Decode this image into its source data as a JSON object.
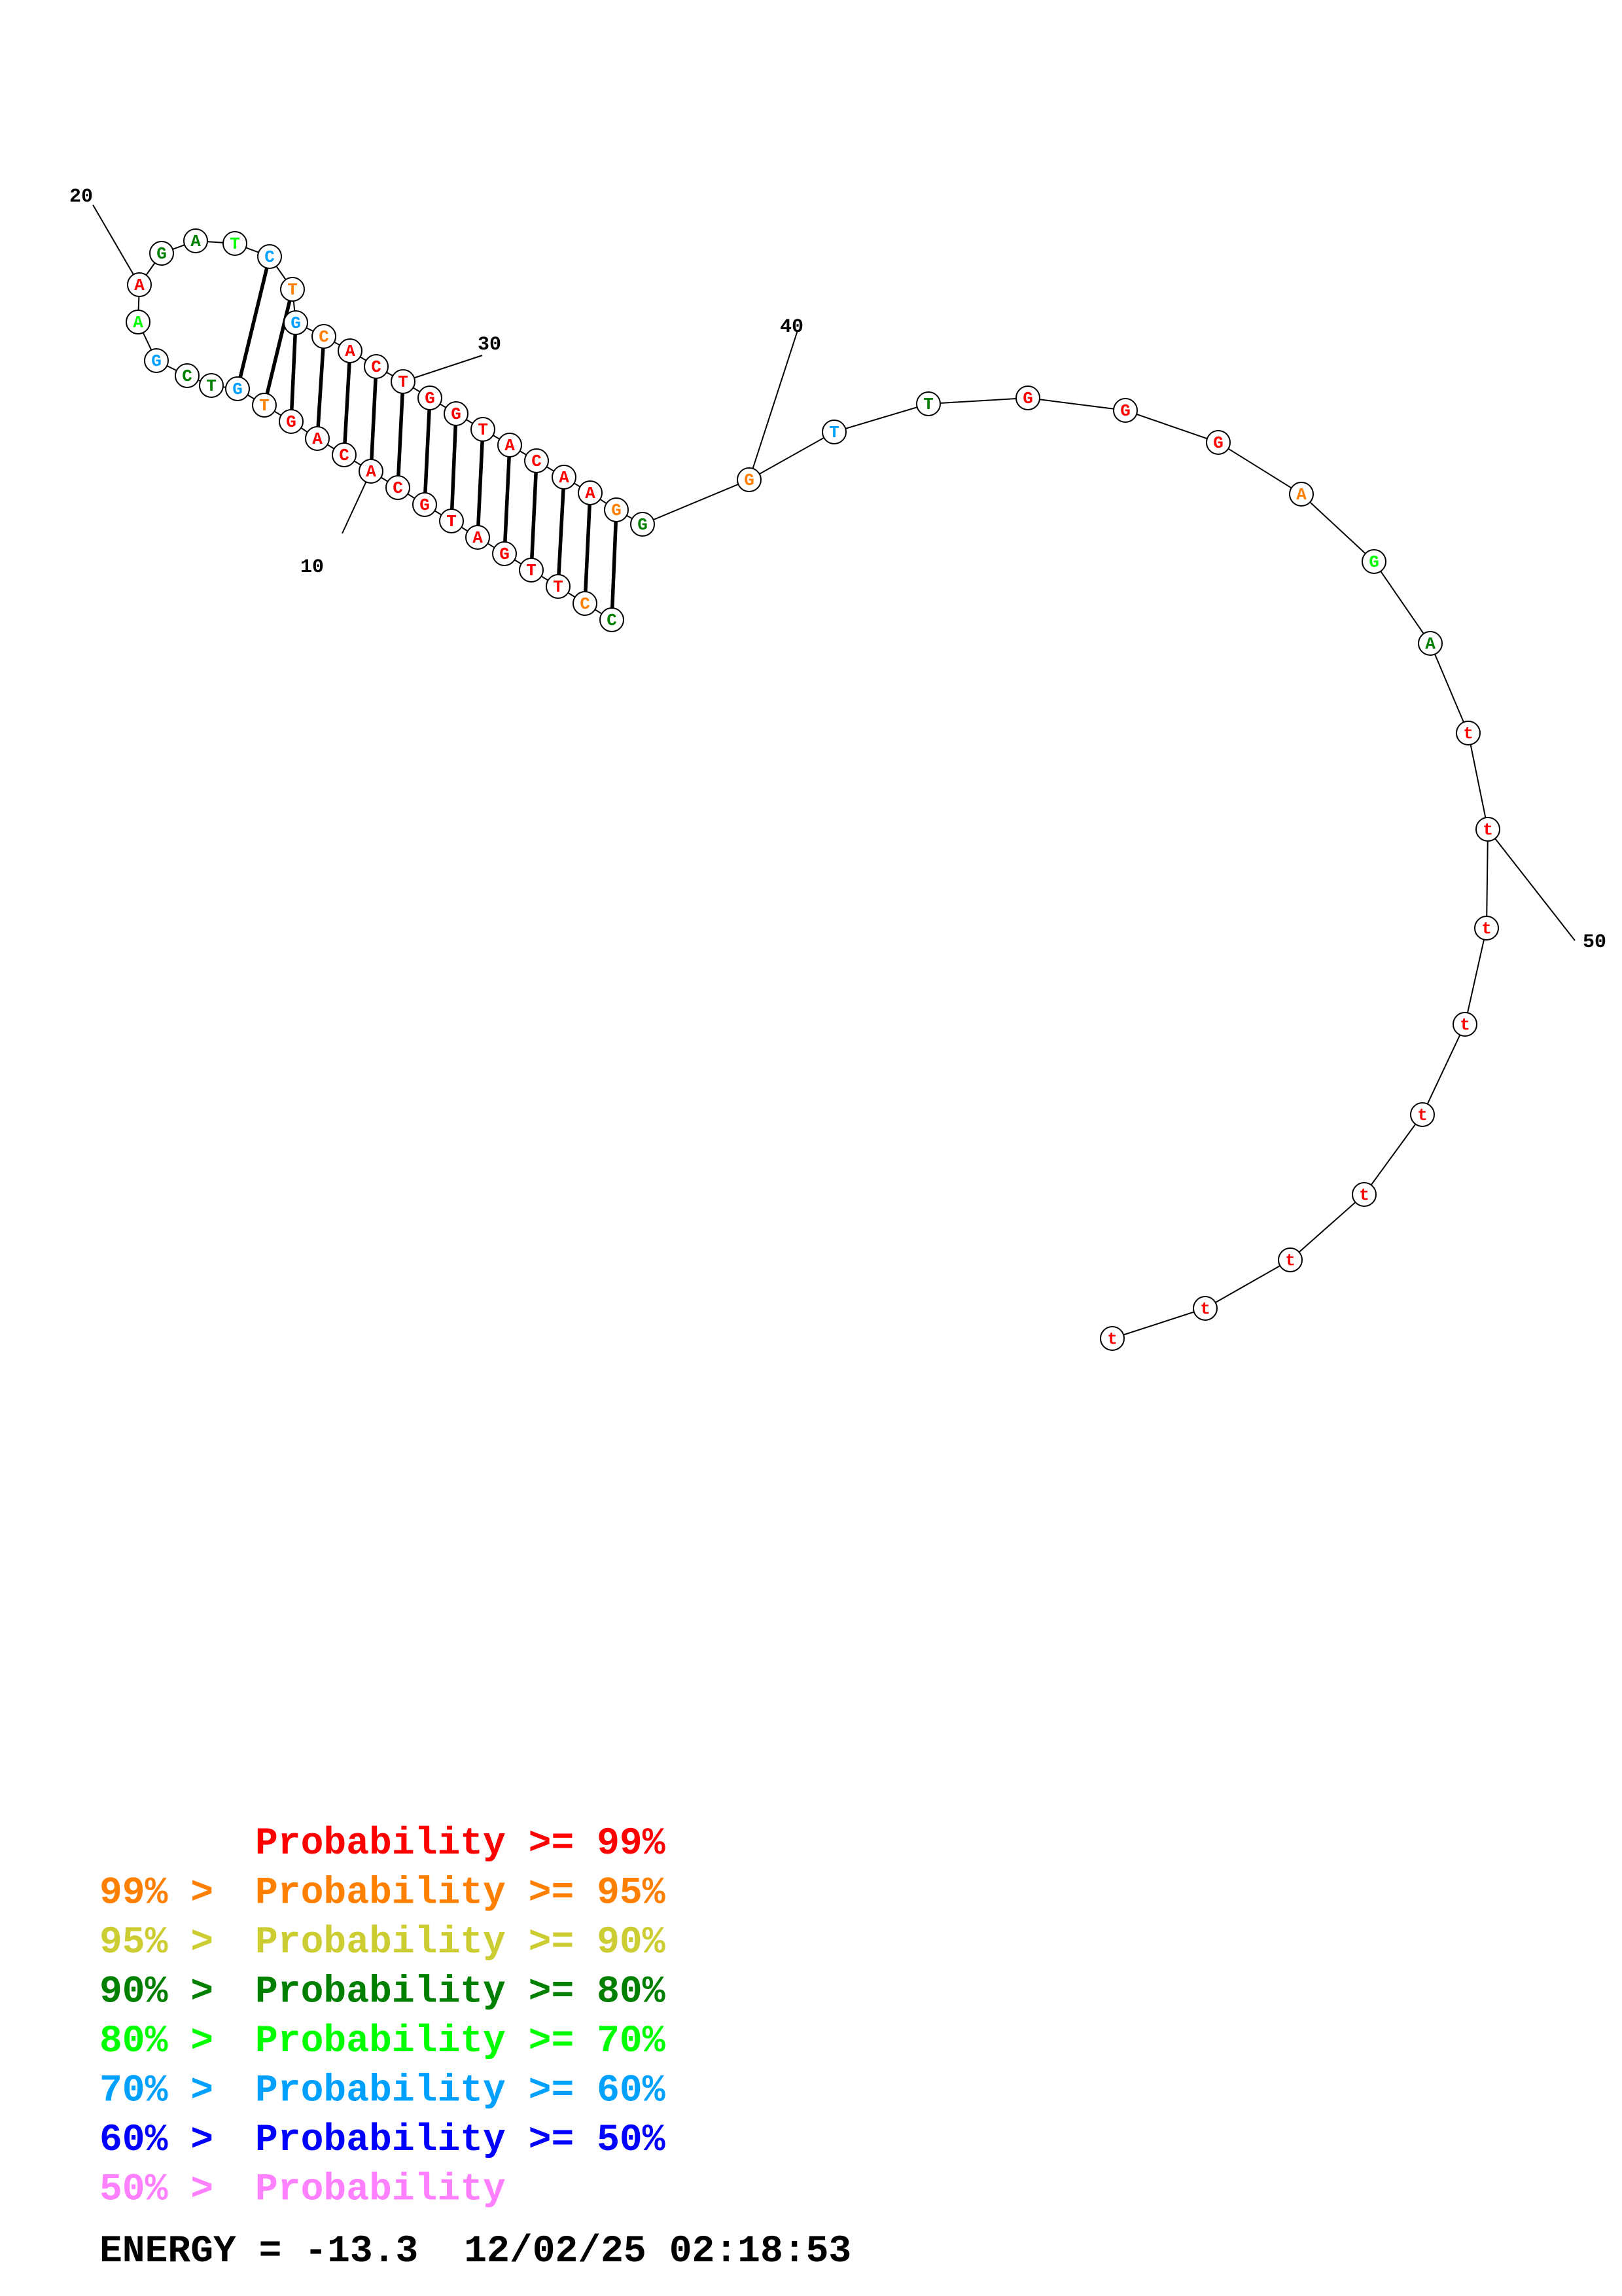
{
  "sequence": [
    "C",
    "C",
    "T",
    "T",
    "G",
    "A",
    "T",
    "G",
    "C",
    "A",
    "C",
    "A",
    "G",
    "T",
    "G",
    "T",
    "C",
    "G",
    "A",
    "A",
    "G",
    "A",
    "T",
    "C",
    "T",
    "G",
    "C",
    "A",
    "C",
    "T",
    "G",
    "G",
    "T",
    "A",
    "C",
    "A",
    "A",
    "G",
    "G",
    "G",
    "T",
    "T",
    "G",
    "G",
    "G",
    "A",
    "G",
    "A",
    "t",
    "t",
    "t",
    "t",
    "t",
    "t",
    "t",
    "t",
    "t"
  ],
  "colors": {
    "p99": "#ff0000",
    "p95": "#ff7f00",
    "p90": "#cccc33",
    "p80": "#007f00",
    "p70": "#00ff00",
    "p60": "#00a0ff",
    "p50": "#0000ff",
    "p_low": "#ff80ff"
  },
  "nucleotide_classes": [
    "p80",
    "p95",
    "p99",
    "p99",
    "p99",
    "p99",
    "p99",
    "p99",
    "p99",
    "p99",
    "p99",
    "p99",
    "p99",
    "p95",
    "p60",
    "p80",
    "p80",
    "p60",
    "p70",
    "p99",
    "p80",
    "p80",
    "p70",
    "p60",
    "p95",
    "p60",
    "p95",
    "p99",
    "p99",
    "p99",
    "p99",
    "p99",
    "p99",
    "p99",
    "p99",
    "p99",
    "p99",
    "p95",
    "p80",
    "p95",
    "p60",
    "p80",
    "p99",
    "p99",
    "p99",
    "p95",
    "p70",
    "p80",
    "p99",
    "p99",
    "p99",
    "p99",
    "p99",
    "p99",
    "p99",
    "p99",
    "p99"
  ],
  "pairs": [
    [
      1,
      38
    ],
    [
      2,
      37
    ],
    [
      3,
      36
    ],
    [
      4,
      35
    ],
    [
      5,
      34
    ],
    [
      6,
      33
    ],
    [
      7,
      32
    ],
    [
      8,
      31
    ],
    [
      9,
      30
    ],
    [
      10,
      29
    ],
    [
      11,
      28
    ],
    [
      12,
      27
    ],
    [
      13,
      26
    ],
    [
      14,
      25
    ],
    [
      15,
      24
    ]
  ],
  "tick_labels": {
    "10": "10",
    "20": "20",
    "30": "30",
    "40": "40",
    "50": "50"
  },
  "legend": [
    {
      "prefix": "",
      "label": "Probability >= 99%",
      "color_key": "p99"
    },
    {
      "prefix": "99% > ",
      "label": "Probability >= 95%",
      "color_key": "p95"
    },
    {
      "prefix": "95% > ",
      "label": "Probability >= 90%",
      "color_key": "p90"
    },
    {
      "prefix": "90% > ",
      "label": "Probability >= 80%",
      "color_key": "p80"
    },
    {
      "prefix": "80% > ",
      "label": "Probability >= 70%",
      "color_key": "p70"
    },
    {
      "prefix": "70% > ",
      "label": "Probability >= 60%",
      "color_key": "p60"
    },
    {
      "prefix": "60% > ",
      "label": "Probability >= 50%",
      "color_key": "p50"
    },
    {
      "prefix": "50% > ",
      "label": "Probability",
      "color_key": "p_low"
    }
  ],
  "footer": {
    "energy_label": "ENERGY = ",
    "energy_value": "-13.3",
    "date": "12/02/25",
    "time": "02:18:53"
  }
}
